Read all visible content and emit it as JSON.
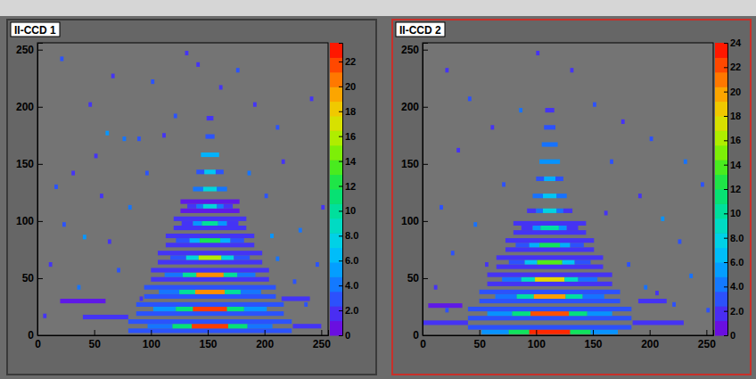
{
  "chart_data": [
    {
      "type": "heatmap",
      "title": "II-CCD 1",
      "xlim": [
        0,
        256
      ],
      "ylim": [
        0,
        256
      ],
      "xticks": [
        0,
        50,
        100,
        150,
        200,
        250
      ],
      "yticks": [
        0,
        50,
        100,
        150,
        200,
        250
      ],
      "zlim": [
        0,
        23.5
      ],
      "zticks": [
        0,
        {
          "value": 2,
          "label": "2.0"
        },
        {
          "value": 4,
          "label": "4.0"
        },
        {
          "value": 6,
          "label": "6.0"
        },
        {
          "value": 8,
          "label": "8.0"
        },
        10,
        12,
        14,
        16,
        18,
        20,
        22
      ],
      "cell_height": 4,
      "cells": [
        [
          80,
          224,
          2,
          3
        ],
        [
          97,
          119,
          6,
          4
        ],
        [
          119,
          136,
          6,
          11
        ],
        [
          136,
          168,
          6,
          22
        ],
        [
          168,
          185,
          6,
          11
        ],
        [
          185,
          207,
          6,
          4
        ],
        [
          80,
          224,
          10,
          3
        ],
        [
          87,
          217,
          17,
          3
        ],
        [
          102,
          122,
          21,
          5
        ],
        [
          122,
          137,
          21,
          11
        ],
        [
          137,
          167,
          21,
          22
        ],
        [
          167,
          182,
          21,
          11
        ],
        [
          182,
          202,
          21,
          5
        ],
        [
          87,
          217,
          25,
          3
        ],
        [
          94,
          210,
          32,
          3
        ],
        [
          107,
          125,
          36,
          4
        ],
        [
          125,
          139,
          36,
          10
        ],
        [
          139,
          165,
          36,
          20
        ],
        [
          165,
          179,
          36,
          10
        ],
        [
          179,
          197,
          36,
          4
        ],
        [
          94,
          210,
          40,
          3
        ],
        [
          100,
          204,
          47,
          2
        ],
        [
          112,
          128,
          51,
          4
        ],
        [
          128,
          140,
          51,
          10
        ],
        [
          140,
          164,
          51,
          20
        ],
        [
          164,
          176,
          51,
          10
        ],
        [
          176,
          192,
          51,
          4
        ],
        [
          100,
          204,
          55,
          2
        ],
        [
          106,
          198,
          62,
          2
        ],
        [
          117,
          131,
          66,
          3
        ],
        [
          131,
          142,
          66,
          8
        ],
        [
          142,
          162,
          66,
          16
        ],
        [
          162,
          173,
          66,
          8
        ],
        [
          173,
          187,
          66,
          3
        ],
        [
          106,
          198,
          70,
          2
        ],
        [
          113,
          191,
          77,
          2
        ],
        [
          122,
          134,
          81,
          3
        ],
        [
          134,
          143,
          81,
          6
        ],
        [
          143,
          161,
          81,
          12
        ],
        [
          161,
          170,
          81,
          6
        ],
        [
          170,
          182,
          81,
          3
        ],
        [
          113,
          191,
          85,
          2
        ],
        [
          120,
          184,
          92,
          2
        ],
        [
          127,
          137,
          96,
          2
        ],
        [
          137,
          145,
          96,
          5
        ],
        [
          145,
          159,
          96,
          10
        ],
        [
          159,
          167,
          96,
          5
        ],
        [
          167,
          177,
          96,
          2
        ],
        [
          120,
          184,
          100,
          2
        ],
        [
          126,
          178,
          107,
          1
        ],
        [
          132,
          140,
          111,
          2
        ],
        [
          140,
          146,
          111,
          4
        ],
        [
          146,
          158,
          111,
          8
        ],
        [
          158,
          164,
          111,
          4
        ],
        [
          164,
          172,
          111,
          2
        ],
        [
          126,
          178,
          115,
          1
        ],
        [
          137,
          146,
          126,
          4
        ],
        [
          146,
          158,
          126,
          8
        ],
        [
          158,
          167,
          126,
          4
        ],
        [
          140,
          147,
          141,
          3
        ],
        [
          147,
          157,
          141,
          7
        ],
        [
          157,
          164,
          141,
          3
        ],
        [
          144,
          160,
          156,
          6
        ],
        [
          148,
          156,
          172,
          3
        ],
        [
          149,
          155,
          188,
          2
        ],
        [
          40,
          80,
          14,
          2
        ],
        [
          225,
          250,
          6,
          2
        ],
        [
          20,
          60,
          28,
          1
        ],
        [
          215,
          240,
          30,
          2
        ],
        [
          20,
          23,
          240,
          3
        ],
        [
          45,
          48,
          200,
          2
        ],
        [
          60,
          63,
          175,
          5
        ],
        [
          75,
          78,
          170,
          4
        ],
        [
          88,
          91,
          170,
          3
        ],
        [
          110,
          113,
          173,
          2
        ],
        [
          30,
          33,
          140,
          2
        ],
        [
          15,
          18,
          128,
          3
        ],
        [
          55,
          58,
          120,
          2
        ],
        [
          80,
          83,
          110,
          4
        ],
        [
          22,
          25,
          95,
          3
        ],
        [
          40,
          43,
          84,
          5
        ],
        [
          62,
          65,
          80,
          2
        ],
        [
          200,
          203,
          120,
          3
        ],
        [
          215,
          218,
          150,
          2
        ],
        [
          230,
          233,
          90,
          4
        ],
        [
          245,
          248,
          60,
          3
        ],
        [
          205,
          208,
          85,
          5
        ],
        [
          190,
          193,
          200,
          2
        ],
        [
          175,
          178,
          230,
          3
        ],
        [
          130,
          133,
          245,
          2
        ],
        [
          100,
          103,
          220,
          3
        ],
        [
          160,
          163,
          215,
          2
        ],
        [
          120,
          123,
          190,
          3
        ],
        [
          240,
          243,
          205,
          2
        ],
        [
          210,
          213,
          180,
          3
        ],
        [
          50,
          53,
          155,
          2
        ],
        [
          95,
          98,
          140,
          3
        ],
        [
          185,
          188,
          140,
          4
        ],
        [
          225,
          228,
          45,
          3
        ],
        [
          10,
          13,
          60,
          2
        ],
        [
          35,
          38,
          40,
          4
        ],
        [
          70,
          73,
          55,
          3
        ],
        [
          90,
          93,
          30,
          2
        ],
        [
          210,
          213,
          65,
          4
        ],
        [
          235,
          238,
          25,
          3
        ],
        [
          5,
          8,
          15,
          2
        ],
        [
          250,
          253,
          110,
          2
        ],
        [
          140,
          143,
          235,
          2
        ],
        [
          65,
          68,
          225,
          2
        ]
      ]
    },
    {
      "type": "heatmap",
      "title": "II-CCD 2",
      "xlim": [
        0,
        256
      ],
      "ylim": [
        0,
        256
      ],
      "xticks": [
        0,
        50,
        100,
        150,
        200,
        250
      ],
      "yticks": [
        0,
        50,
        100,
        150,
        200,
        250
      ],
      "zlim": [
        0,
        24
      ],
      "zticks": [
        0,
        {
          "value": 2,
          "label": "2.0"
        },
        {
          "value": 4,
          "label": "4.0"
        },
        {
          "value": 6,
          "label": "6.0"
        },
        {
          "value": 8,
          "label": "8.0"
        },
        10,
        12,
        14,
        16,
        18,
        20,
        22,
        24
      ],
      "cell_height": 4,
      "cells": [
        [
          52,
          76,
          1,
          5
        ],
        [
          76,
          94,
          1,
          12
        ],
        [
          94,
          130,
          1,
          23
        ],
        [
          130,
          148,
          1,
          12
        ],
        [
          148,
          172,
          1,
          5
        ],
        [
          40,
          184,
          5,
          3
        ],
        [
          40,
          184,
          13,
          3
        ],
        [
          57,
          79,
          17,
          5
        ],
        [
          79,
          95,
          17,
          11
        ],
        [
          95,
          129,
          17,
          22
        ],
        [
          129,
          145,
          17,
          11
        ],
        [
          145,
          167,
          17,
          5
        ],
        [
          40,
          184,
          21,
          3
        ],
        [
          50,
          174,
          28,
          3
        ],
        [
          64,
          83,
          32,
          4
        ],
        [
          83,
          98,
          32,
          10
        ],
        [
          98,
          126,
          32,
          20
        ],
        [
          126,
          141,
          32,
          10
        ],
        [
          141,
          160,
          32,
          4
        ],
        [
          50,
          174,
          36,
          3
        ],
        [
          57,
          167,
          43,
          2
        ],
        [
          70,
          87,
          47,
          4
        ],
        [
          87,
          99,
          47,
          9
        ],
        [
          99,
          125,
          47,
          18
        ],
        [
          125,
          137,
          47,
          9
        ],
        [
          137,
          154,
          47,
          4
        ],
        [
          57,
          167,
          51,
          2
        ],
        [
          65,
          159,
          58,
          2
        ],
        [
          76,
          90,
          62,
          3
        ],
        [
          90,
          101,
          62,
          7
        ],
        [
          101,
          123,
          62,
          14
        ],
        [
          123,
          134,
          62,
          7
        ],
        [
          134,
          148,
          62,
          3
        ],
        [
          65,
          159,
          66,
          2
        ],
        [
          73,
          151,
          73,
          2
        ],
        [
          82,
          94,
          77,
          3
        ],
        [
          94,
          103,
          77,
          6
        ],
        [
          103,
          121,
          77,
          12
        ],
        [
          121,
          130,
          77,
          6
        ],
        [
          130,
          142,
          77,
          3
        ],
        [
          73,
          151,
          81,
          2
        ],
        [
          80,
          144,
          88,
          2
        ],
        [
          87,
          97,
          92,
          2
        ],
        [
          97,
          104,
          92,
          5
        ],
        [
          104,
          120,
          92,
          10
        ],
        [
          120,
          127,
          92,
          5
        ],
        [
          127,
          137,
          92,
          2
        ],
        [
          80,
          144,
          96,
          2
        ],
        [
          92,
          100,
          107,
          2
        ],
        [
          100,
          106,
          107,
          4
        ],
        [
          106,
          118,
          107,
          8
        ],
        [
          118,
          124,
          107,
          4
        ],
        [
          124,
          132,
          107,
          2
        ],
        [
          97,
          106,
          120,
          4
        ],
        [
          106,
          118,
          120,
          7
        ],
        [
          118,
          127,
          120,
          4
        ],
        [
          100,
          107,
          135,
          3
        ],
        [
          107,
          117,
          135,
          6
        ],
        [
          117,
          124,
          135,
          3
        ],
        [
          103,
          121,
          150,
          5
        ],
        [
          105,
          119,
          165,
          4
        ],
        [
          107,
          117,
          180,
          3
        ],
        [
          108,
          116,
          195,
          2
        ],
        [
          0,
          40,
          9,
          2
        ],
        [
          185,
          230,
          9,
          2
        ],
        [
          5,
          35,
          24,
          1
        ],
        [
          190,
          215,
          28,
          2
        ],
        [
          20,
          23,
          230,
          2
        ],
        [
          40,
          43,
          205,
          3
        ],
        [
          60,
          63,
          180,
          2
        ],
        [
          85,
          88,
          195,
          4
        ],
        [
          150,
          153,
          200,
          3
        ],
        [
          175,
          178,
          185,
          2
        ],
        [
          200,
          203,
          170,
          3
        ],
        [
          230,
          233,
          150,
          4
        ],
        [
          245,
          248,
          130,
          3
        ],
        [
          210,
          213,
          100,
          5
        ],
        [
          225,
          228,
          80,
          3
        ],
        [
          190,
          193,
          120,
          2
        ],
        [
          165,
          168,
          150,
          3
        ],
        [
          30,
          33,
          160,
          2
        ],
        [
          15,
          18,
          110,
          3
        ],
        [
          45,
          48,
          95,
          4
        ],
        [
          25,
          28,
          70,
          3
        ],
        [
          10,
          13,
          40,
          2
        ],
        [
          235,
          238,
          50,
          4
        ],
        [
          250,
          253,
          20,
          3
        ],
        [
          205,
          208,
          35,
          2
        ],
        [
          180,
          183,
          60,
          3
        ],
        [
          130,
          133,
          230,
          2
        ],
        [
          100,
          103,
          245,
          2
        ],
        [
          70,
          73,
          130,
          3
        ],
        [
          55,
          58,
          60,
          2
        ],
        [
          20,
          23,
          20,
          3
        ],
        [
          195,
          198,
          40,
          4
        ],
        [
          220,
          223,
          25,
          3
        ],
        [
          160,
          163,
          105,
          2
        ]
      ]
    }
  ]
}
